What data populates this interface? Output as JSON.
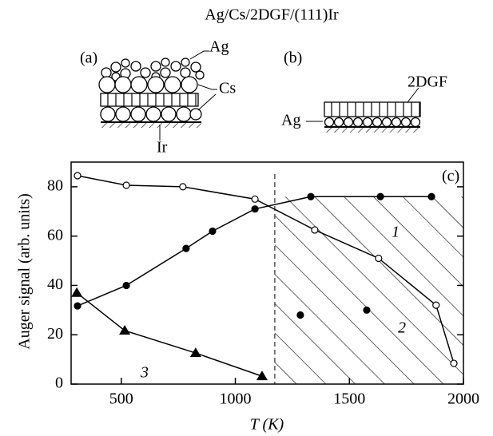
{
  "title": "Ag/Cs/2DGF/(111)Ir",
  "diagram_a": {
    "panel": "(a)",
    "labels": [
      "Ag",
      "Cs",
      "Ir"
    ]
  },
  "diagram_b": {
    "panel": "(b)",
    "labels": [
      "2DGF",
      "Ag"
    ]
  },
  "chart_data": {
    "type": "line",
    "panel": "(c)",
    "x_label": "T (K)",
    "y_label": "Auger signal  (arb. units)",
    "xlim": [
      280,
      2000
    ],
    "ylim": [
      0,
      90
    ],
    "xticks": [
      500,
      1000,
      1500,
      2000
    ],
    "yticks": [
      0,
      20,
      40,
      60,
      80
    ],
    "boundary_x": 1173,
    "series": [
      {
        "name": "1",
        "marker": "filled-circle",
        "color": "#000000",
        "x": [
          308,
          522,
          784,
          900,
          1086,
          1331,
          1636,
          1860
        ],
        "values": [
          31.7,
          40,
          55,
          62,
          71,
          76,
          76,
          76
        ]
      },
      {
        "name": "2",
        "marker": "open-circle",
        "color": "#000000",
        "x": [
          308,
          522,
          770,
          1086,
          1348,
          1628,
          1880,
          1958
        ],
        "values": [
          84.5,
          80.6,
          80,
          75,
          62.5,
          51,
          32,
          8.4
        ]
      },
      {
        "name": "3",
        "marker": "triangle",
        "color": "#000000",
        "x": [
          305,
          515,
          826,
          1117
        ],
        "values": [
          37,
          21.7,
          12.6,
          3.2
        ]
      },
      {
        "marker": "filled-circle",
        "color": "#000000",
        "line": false,
        "x": [
          1285,
          1576
        ],
        "values": [
          28,
          30
        ]
      }
    ]
  }
}
